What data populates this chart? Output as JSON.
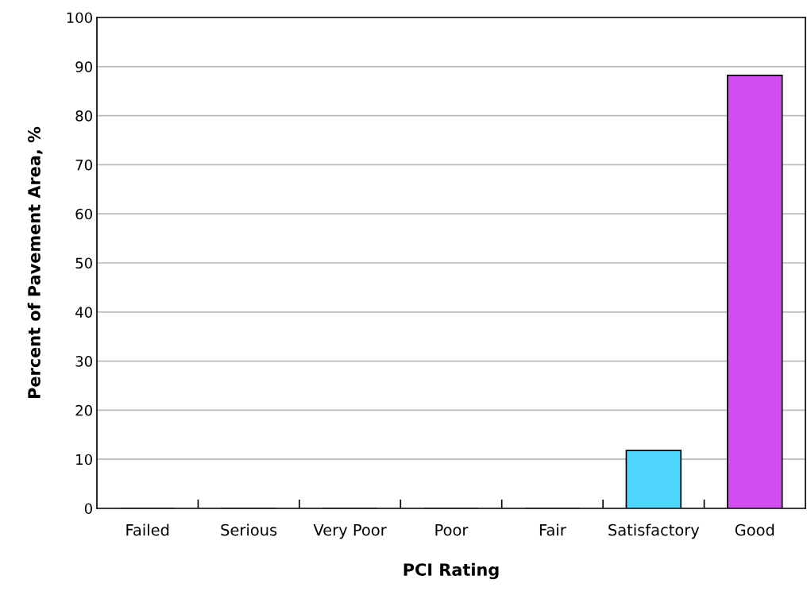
{
  "chart_data": {
    "type": "bar",
    "categories": [
      "Failed",
      "Serious",
      "Very Poor",
      "Poor",
      "Fair",
      "Satisfactory",
      "Good"
    ],
    "values": [
      0,
      0,
      0,
      0,
      0,
      11.8,
      88.2
    ],
    "colors": [
      "#4dd5fc",
      "#4dd5fc",
      "#4dd5fc",
      "#4dd5fc",
      "#4dd5fc",
      "#4dd5fc",
      "#d24df0"
    ],
    "xlabel": "PCI Rating",
    "ylabel": "Percent of Pavement Area, %",
    "ylim": [
      0,
      100
    ],
    "yticks": [
      0,
      10,
      20,
      30,
      40,
      50,
      60,
      70,
      80,
      90,
      100
    ],
    "grid": "y"
  }
}
